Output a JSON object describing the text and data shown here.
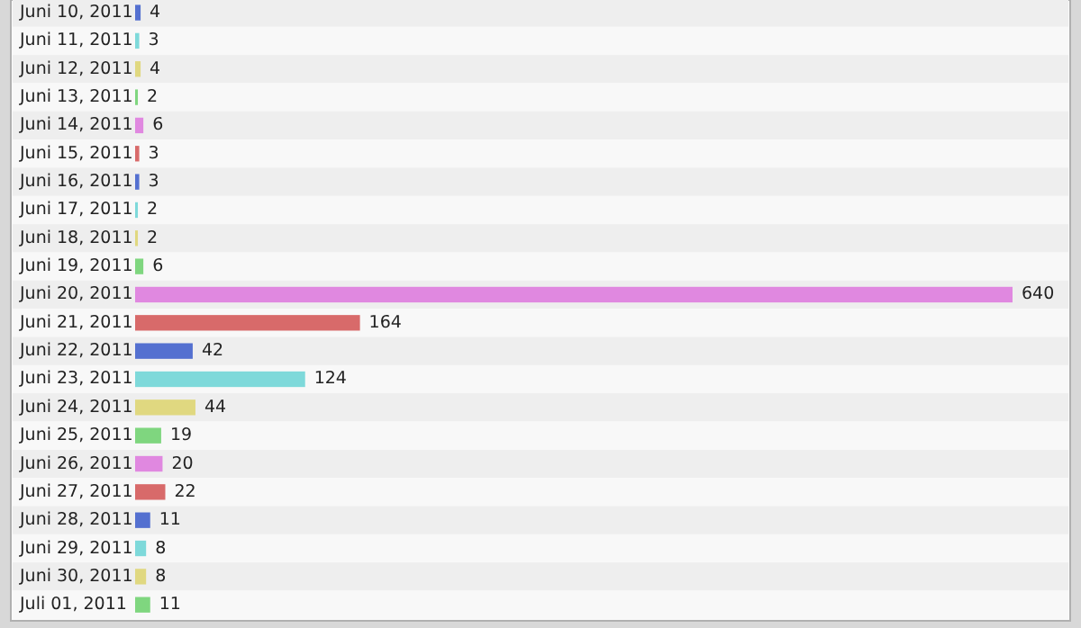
{
  "chart_data": {
    "type": "bar",
    "orientation": "horizontal",
    "data_labels": true,
    "categories": [
      "Juni 10, 2011",
      "Juni 11, 2011",
      "Juni 12, 2011",
      "Juni 13, 2011",
      "Juni 14, 2011",
      "Juni 15, 2011",
      "Juni 16, 2011",
      "Juni 17, 2011",
      "Juni 18, 2011",
      "Juni 19, 2011",
      "Juni 20, 2011",
      "Juni 21, 2011",
      "Juni 22, 2011",
      "Juni 23, 2011",
      "Juni 24, 2011",
      "Juni 25, 2011",
      "Juni 26, 2011",
      "Juni 27, 2011",
      "Juni 28, 2011",
      "Juni 29, 2011",
      "Juni 30, 2011",
      "Juli 01, 2011"
    ],
    "values": [
      4,
      3,
      4,
      2,
      6,
      3,
      3,
      2,
      2,
      6,
      640,
      164,
      42,
      124,
      44,
      19,
      20,
      22,
      11,
      8,
      8,
      11
    ],
    "colors": [
      "#5470d0",
      "#7ed9da",
      "#e0d880",
      "#7fd67f",
      "#e088e0",
      "#d86a6a",
      "#5470d0",
      "#7ed9da",
      "#e0d880",
      "#7fd67f",
      "#e088e0",
      "#d86a6a",
      "#5470d0",
      "#7ed9da",
      "#e0d880",
      "#7fd67f",
      "#e088e0",
      "#d86a6a",
      "#5470d0",
      "#7ed9da",
      "#e0d880",
      "#7fd67f"
    ]
  }
}
